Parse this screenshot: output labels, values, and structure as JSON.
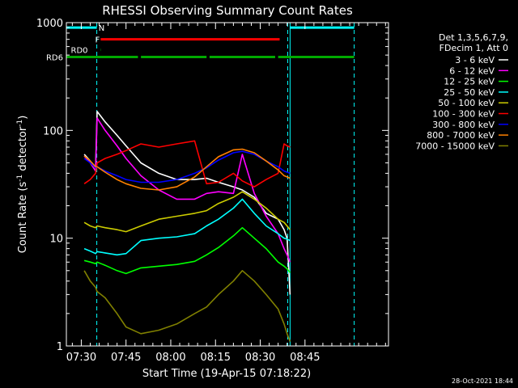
{
  "chart_data": {
    "type": "line",
    "title": "RHESSI Observing Summary Count Rates",
    "xlabel": "Start Time (19-Apr-15 07:18:22)",
    "ylabel_main": "Count Rate (s",
    "ylabel_sup1": "-1",
    "ylabel_mid": " detector",
    "ylabel_sup2": "-1",
    "ylabel_end": ")",
    "xlim": [
      7.0,
      115.0
    ],
    "ylim": [
      1,
      1000
    ],
    "yscale": "log",
    "xticks": [
      {
        "value": 12,
        "label": "07:30"
      },
      {
        "value": 27,
        "label": "07:45"
      },
      {
        "value": 42,
        "label": "08:00"
      },
      {
        "value": 57,
        "label": "08:15"
      },
      {
        "value": 72,
        "label": "08:30"
      },
      {
        "value": 87,
        "label": "08:45"
      }
    ],
    "yticks": [
      {
        "value": 1,
        "label": "1"
      },
      {
        "value": 10,
        "label": "10"
      },
      {
        "value": 100,
        "label": "100"
      },
      {
        "value": 1000,
        "label": "1000"
      }
    ],
    "legend_header": [
      "Det 1,3,5,6,7,9,",
      "FDecim 1, Att 0"
    ],
    "footer_date": "28-Oct-2021 18:44",
    "colors": {
      "cyan": "#00ffff",
      "red": "#ff0000",
      "green": "#00aa00"
    },
    "dashed_lines_x": [
      17.2,
      81.2,
      103.5
    ],
    "solid_lines_x": [
      82.0
    ],
    "flags": [
      {
        "label": "N",
        "color": "#00ffff",
        "y": 900,
        "segments": [
          [
            7.0,
            17.2
          ],
          [
            82.0,
            103.5
          ]
        ]
      },
      {
        "label": "F",
        "color": "#ff0000",
        "y": 700,
        "segments": [
          [
            18.5,
            78.5
          ]
        ]
      },
      {
        "label": "RD0",
        "color": "#00aa00",
        "y": 560,
        "segments": [
          [
            18.5,
            18.6
          ]
        ]
      },
      {
        "label": "RD6",
        "color": "#00aa00",
        "y": 480,
        "segments": [
          [
            7.0,
            31.0
          ],
          [
            32.0,
            54.0
          ],
          [
            55.0,
            77.0
          ],
          [
            78.0,
            103.5
          ]
        ]
      }
    ],
    "series": [
      {
        "name": "3 - 6 keV",
        "color": "#ffffff",
        "x": [
          13,
          15,
          16.8,
          17.3,
          20,
          24,
          27,
          32,
          38,
          44,
          50,
          54,
          58,
          63,
          66,
          70,
          74,
          78,
          80,
          81,
          82
        ],
        "y": [
          60,
          52,
          45,
          150,
          120,
          90,
          72,
          50,
          40,
          35,
          35,
          36,
          33,
          30,
          28,
          24,
          17,
          15,
          12,
          10,
          3
        ]
      },
      {
        "name": "6 - 12 keV",
        "color": "#ff00ff",
        "x": [
          13,
          15,
          16.8,
          17.3,
          20,
          24,
          27,
          32,
          38,
          44,
          50,
          54,
          58,
          63,
          66,
          70,
          74,
          78,
          80,
          81,
          82
        ],
        "y": [
          58,
          50,
          42,
          130,
          100,
          72,
          55,
          38,
          28,
          23,
          23,
          26,
          27,
          26,
          60,
          26,
          16,
          11,
          8,
          7,
          6
        ]
      },
      {
        "name": "12 - 25 keV",
        "color": "#00ff00",
        "x": [
          13,
          15,
          16.8,
          17.3,
          20,
          24,
          27,
          32,
          38,
          44,
          50,
          54,
          58,
          63,
          66,
          70,
          74,
          78,
          80,
          81,
          82
        ],
        "y": [
          6.2,
          6.0,
          5.8,
          6.0,
          5.6,
          5.0,
          4.7,
          5.3,
          5.5,
          5.7,
          6.1,
          7.0,
          8.2,
          10.5,
          12.5,
          10,
          8,
          6,
          5.5,
          5.2,
          4.8
        ]
      },
      {
        "name": "25 - 50 keV",
        "color": "#00ffff",
        "x": [
          13,
          15,
          16.8,
          17.3,
          20,
          24,
          27,
          32,
          38,
          44,
          50,
          54,
          58,
          63,
          66,
          70,
          74,
          78,
          80,
          81,
          82
        ],
        "y": [
          8.0,
          7.6,
          7.2,
          7.5,
          7.3,
          7.0,
          7.2,
          9.5,
          10,
          10.3,
          11,
          13,
          15,
          19,
          23,
          17,
          13,
          11,
          10,
          9.8,
          9.5
        ]
      },
      {
        "name": "50 - 100 keV",
        "color": "#cccc00",
        "x": [
          13,
          15,
          16.8,
          17.3,
          20,
          24,
          27,
          32,
          38,
          44,
          50,
          54,
          58,
          63,
          66,
          70,
          74,
          78,
          80,
          81,
          82
        ],
        "y": [
          14,
          13,
          12.5,
          13,
          12.5,
          12,
          11.5,
          13,
          15,
          16,
          17,
          18,
          21,
          24,
          27,
          23,
          19,
          15,
          14,
          13,
          12
        ]
      },
      {
        "name": "100 - 300 keV",
        "color": "#ff0000",
        "x": [
          13,
          15,
          16.8,
          17.3,
          20,
          24,
          27,
          32,
          38,
          44,
          50,
          54,
          58,
          63,
          66,
          70,
          74,
          78,
          80,
          81,
          82
        ],
        "y": [
          32,
          35,
          40,
          50,
          55,
          60,
          65,
          75,
          70,
          75,
          80,
          32,
          33,
          40,
          34,
          30,
          35,
          40,
          75,
          72,
          70
        ]
      },
      {
        "name": "300 - 800 keV",
        "color": "#0000ff",
        "x": [
          13,
          15,
          16.8,
          17.3,
          20,
          24,
          27,
          32,
          38,
          44,
          50,
          54,
          58,
          63,
          66,
          70,
          74,
          78,
          80,
          81,
          82
        ],
        "y": [
          55,
          50,
          45,
          46,
          42,
          38,
          35,
          33,
          33,
          35,
          40,
          45,
          53,
          62,
          64,
          60,
          52,
          46,
          42,
          41,
          40
        ]
      },
      {
        "name": "800 - 7000 keV",
        "color": "#ff8000",
        "x": [
          13,
          15,
          16.8,
          17.3,
          20,
          24,
          27,
          32,
          38,
          44,
          50,
          54,
          58,
          63,
          66,
          70,
          74,
          78,
          80,
          81,
          82
        ],
        "y": [
          58,
          52,
          46,
          46,
          41,
          35,
          32,
          29,
          28,
          30,
          37,
          46,
          57,
          66,
          67,
          62,
          52,
          43,
          38,
          37,
          36
        ]
      },
      {
        "name": "7000 - 15000 keV",
        "color": "#808000",
        "x": [
          13,
          15,
          16.8,
          17.3,
          20,
          24,
          27,
          32,
          38,
          44,
          50,
          54,
          58,
          63,
          66,
          70,
          74,
          78,
          80,
          81,
          82
        ],
        "y": [
          5.0,
          4.0,
          3.5,
          3.2,
          2.8,
          2.0,
          1.5,
          1.3,
          1.4,
          1.6,
          2.0,
          2.3,
          3.0,
          4.0,
          5.0,
          4.0,
          3.0,
          2.2,
          1.6,
          1.3,
          1.1
        ]
      }
    ]
  }
}
